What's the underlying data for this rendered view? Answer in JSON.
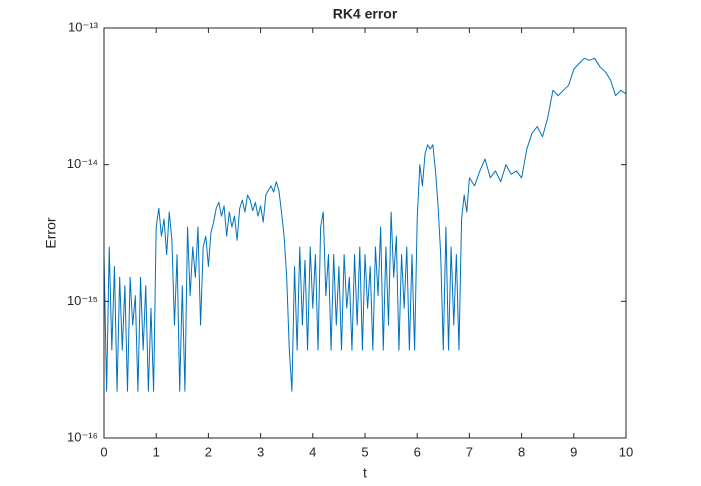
{
  "chart_data": {
    "type": "line",
    "title": "RK4 error",
    "xlabel": "t",
    "ylabel": "Error",
    "yscale": "log",
    "color": "#0072bd",
    "box": true,
    "xlim": [
      0,
      10
    ],
    "xticks": [
      0,
      1,
      2,
      3,
      4,
      5,
      6,
      7,
      8,
      9,
      10
    ],
    "ylim": [
      1e-16,
      1e-13
    ],
    "yticks": [
      {
        "value": 1e-16,
        "label": "10⁻¹⁶"
      },
      {
        "value": 1e-15,
        "label": "10⁻¹⁵"
      },
      {
        "value": 1e-14,
        "label": "10⁻¹⁴"
      },
      {
        "value": 1e-13,
        "label": "10⁻¹³"
      }
    ],
    "x": [
      0,
      0.05,
      0.1,
      0.15,
      0.2,
      0.25,
      0.3,
      0.35,
      0.4,
      0.45,
      0.5,
      0.55,
      0.6,
      0.65,
      0.7,
      0.75,
      0.8,
      0.85,
      0.9,
      0.95,
      1,
      1.05,
      1.1,
      1.15,
      1.2,
      1.25,
      1.3,
      1.35,
      1.4,
      1.45,
      1.5,
      1.55,
      1.6,
      1.65,
      1.7,
      1.75,
      1.8,
      1.85,
      1.9,
      1.95,
      2,
      2.05,
      2.1,
      2.15,
      2.2,
      2.25,
      2.3,
      2.35,
      2.4,
      2.45,
      2.5,
      2.55,
      2.6,
      2.65,
      2.7,
      2.75,
      2.8,
      2.85,
      2.9,
      2.95,
      3,
      3.05,
      3.1,
      3.15,
      3.2,
      3.25,
      3.3,
      3.35,
      3.4,
      3.45,
      3.5,
      3.55,
      3.6,
      3.65,
      3.7,
      3.75,
      3.8,
      3.85,
      3.9,
      3.95,
      4,
      4.05,
      4.1,
      4.15,
      4.2,
      4.25,
      4.3,
      4.35,
      4.4,
      4.45,
      4.5,
      4.55,
      4.6,
      4.65,
      4.7,
      4.75,
      4.8,
      4.85,
      4.9,
      4.95,
      5,
      5.05,
      5.1,
      5.15,
      5.2,
      5.25,
      5.3,
      5.35,
      5.4,
      5.45,
      5.5,
      5.55,
      5.6,
      5.65,
      5.7,
      5.75,
      5.8,
      5.85,
      5.9,
      5.95,
      6,
      6.05,
      6.1,
      6.15,
      6.2,
      6.25,
      6.3,
      6.35,
      6.4,
      6.45,
      6.5,
      6.55,
      6.6,
      6.65,
      6.7,
      6.75,
      6.8,
      6.85,
      6.9,
      6.95,
      7,
      7.1,
      7.2,
      7.3,
      7.4,
      7.5,
      7.6,
      7.7,
      7.8,
      7.9,
      8,
      8.1,
      8.2,
      8.3,
      8.4,
      8.5,
      8.6,
      8.7,
      8.8,
      8.9,
      9,
      9.1,
      9.2,
      9.3,
      9.4,
      9.5,
      9.6,
      9.7,
      9.8,
      9.9,
      10
    ],
    "values": [
      2.2e-15,
      2.2e-16,
      2.5e-15,
      4.4e-16,
      1.8e-15,
      2.2e-16,
      1.5e-15,
      4.4e-16,
      1.3e-15,
      2.2e-16,
      1.5e-15,
      6.7e-16,
      1.1e-15,
      2.2e-16,
      1.5e-15,
      4.4e-16,
      1.3e-15,
      2.2e-16,
      8.9e-16,
      2.2e-16,
      3.5e-15,
      4.8e-15,
      3e-15,
      4e-15,
      2.2e-15,
      4.5e-15,
      2.8e-15,
      6.7e-16,
      2.2e-15,
      2.2e-16,
      1.3e-15,
      2.2e-16,
      3.5e-15,
      1.1e-15,
      2.5e-15,
      1.5e-15,
      3.5e-15,
      6.7e-16,
      2.5e-15,
      3e-15,
      1.8e-15,
      3.2e-15,
      3.8e-15,
      4.8e-15,
      5.3e-15,
      4.2e-15,
      5e-15,
      3e-15,
      4.5e-15,
      3.5e-15,
      4.2e-15,
      2.8e-15,
      4.8e-15,
      5.5e-15,
      4.5e-15,
      6e-15,
      5.5e-15,
      4.6e-15,
      5.3e-15,
      4.2e-15,
      5e-15,
      3.8e-15,
      6e-15,
      6.5e-15,
      7e-15,
      6.3e-15,
      7.5e-15,
      6.5e-15,
      4.5e-15,
      3e-15,
      1.5e-15,
      4.4e-16,
      2.2e-16,
      1.8e-15,
      4.4e-16,
      2.5e-15,
      6.7e-16,
      2e-15,
      4.4e-16,
      2.5e-15,
      8.9e-16,
      2.2e-15,
      4.4e-16,
      3.5e-15,
      4.5e-15,
      1.1e-15,
      2.2e-15,
      4.4e-16,
      2.2e-15,
      6.7e-16,
      1.8e-15,
      4.4e-16,
      2.2e-15,
      8.9e-16,
      1.5e-15,
      4.4e-16,
      2.2e-15,
      6.7e-16,
      2.5e-15,
      4.4e-16,
      2.2e-15,
      8.9e-16,
      1.8e-15,
      4.4e-16,
      2.5e-15,
      1.1e-15,
      3.5e-15,
      4.4e-16,
      2.5e-15,
      6.7e-16,
      4.5e-15,
      1.5e-15,
      3e-15,
      4.4e-16,
      2.2e-15,
      8.9e-16,
      2.5e-15,
      4.4e-16,
      2.2e-15,
      4.4e-16,
      4e-15,
      1e-14,
      7e-15,
      1.2e-14,
      1.4e-14,
      1.3e-14,
      1.4e-14,
      9e-15,
      5e-15,
      2.2e-15,
      4.4e-16,
      3.5e-15,
      4.4e-16,
      2.5e-15,
      6.7e-16,
      2.2e-15,
      4.4e-16,
      4e-15,
      6e-15,
      4.5e-15,
      8e-15,
      7e-15,
      9e-15,
      1.1e-14,
      8e-15,
      9e-15,
      7.5e-15,
      1e-14,
      8.5e-15,
      9e-15,
      8e-15,
      1.3e-14,
      1.7e-14,
      1.9e-14,
      1.6e-14,
      2.2e-14,
      3.5e-14,
      3.2e-14,
      3.5e-14,
      3.8e-14,
      5e-14,
      5.5e-14,
      6e-14,
      5.8e-14,
      6e-14,
      5.2e-14,
      4.8e-14,
      4.2e-14,
      3.2e-14,
      3.5e-14,
      3.3e-14
    ]
  }
}
